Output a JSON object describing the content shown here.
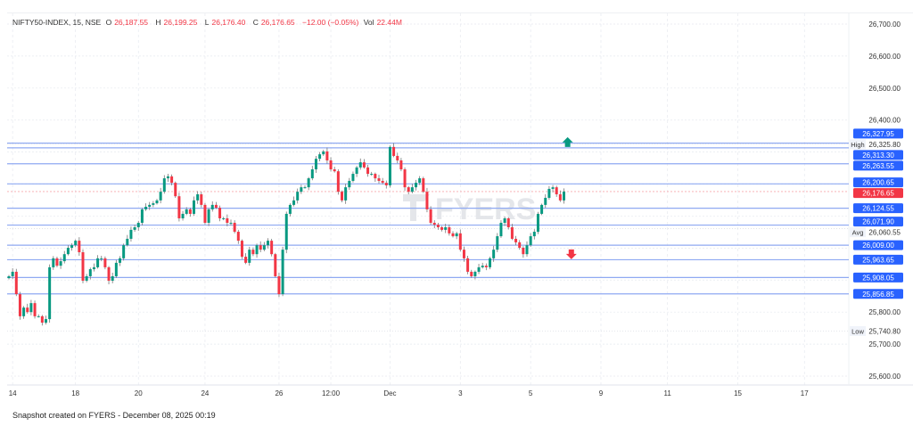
{
  "header": {
    "symbol": "NIFTY50-INDEX, 15, NSE",
    "open_label": "O",
    "open": "26,187.55",
    "high_label": "H",
    "high": "26,199.25",
    "low_label": "L",
    "low": "26,176.40",
    "close_label": "C",
    "close": "26,176.65",
    "change": "−12.00 (−0.05%)",
    "vol_label": "Vol",
    "vol": "22.44M"
  },
  "watermark": "FYERS",
  "footer": "Snapshot created on FYERS - December 08, 2025 00:19",
  "colors": {
    "up": "#089981",
    "down": "#f23645",
    "level_line": "#8fa9f2",
    "level_badge": "#2962ff",
    "last_price": "#f23645",
    "grid": "#e6e9ef"
  },
  "chart_data": {
    "type": "candlestick",
    "ylim": [
      25560,
      26730
    ],
    "y_ticks": [
      26700,
      26600,
      26500,
      26400,
      26300,
      26200,
      26100,
      26000,
      25900,
      25800,
      25700,
      25600
    ],
    "y_tick_labels": [
      "26,700.00",
      "26,600.00",
      "26,500.00",
      "26,400.00",
      "26,300.00",
      "26,200.00",
      "26,100.00",
      "26,000.00",
      "25,900.00",
      "25,800.00",
      "25,700.00",
      "25,600.00"
    ],
    "x_ticks": [
      {
        "label": "14",
        "bar": 1
      },
      {
        "label": "18",
        "bar": 18
      },
      {
        "label": "20",
        "bar": 35
      },
      {
        "label": "24",
        "bar": 53
      },
      {
        "label": "26",
        "bar": 73
      },
      {
        "label": "12:00",
        "bar": 87
      },
      {
        "label": "Dec",
        "bar": 103
      },
      {
        "label": "3",
        "bar": 122
      },
      {
        "label": "5",
        "bar": 141
      },
      {
        "label": "9",
        "bar": 160
      },
      {
        "label": "11",
        "bar": 178
      },
      {
        "label": "15",
        "bar": 197
      },
      {
        "label": "17",
        "bar": 215
      }
    ],
    "closes": [
      25912,
      25926,
      25856,
      25787,
      25814,
      25800,
      25828,
      25787,
      25787,
      25767,
      25778,
      25940,
      25968,
      25945,
      25959,
      25981,
      26001,
      26009,
      26023,
      25987,
      25898,
      25912,
      25934,
      25940,
      25968,
      25968,
      25940,
      25898,
      25912,
      25954,
      25968,
      26009,
      26029,
      26057,
      26065,
      26079,
      26121,
      26129,
      26135,
      26140,
      26149,
      26176,
      26218,
      26224,
      26204,
      26162,
      26093,
      26107,
      26121,
      26107,
      26149,
      26168,
      26135,
      26079,
      26121,
      26135,
      26126,
      26093,
      26093,
      26079,
      26079,
      26051,
      26023,
      25973,
      25954,
      25995,
      25981,
      26009,
      25995,
      26009,
      26023,
      25981,
      25912,
      25856,
      25995,
      26107,
      26135,
      26149,
      26176,
      26190,
      26190,
      26218,
      26246,
      26279,
      26293,
      26302,
      26274,
      26246,
      26240,
      26176,
      26149,
      26190,
      26210,
      26232,
      26252,
      26268,
      26252,
      26232,
      26232,
      26218,
      26210,
      26204,
      26196,
      26316,
      26288,
      26274,
      26246,
      26190,
      26176,
      26190,
      26204,
      26218,
      26176,
      26121,
      26079,
      26073,
      26065,
      26057,
      26065,
      26046,
      26037,
      26046,
      25995,
      25968,
      25926,
      25912,
      25926,
      25940,
      25945,
      25940,
      25968,
      25995,
      26037,
      26079,
      26093,
      26065,
      26029,
      26018,
      26001,
      25981,
      26009,
      26037,
      26051,
      26107,
      26135,
      26157,
      26185,
      26190,
      26168,
      26149,
      26176.65
    ],
    "levels": [
      {
        "value": 26327.95,
        "label": "26,327.95"
      },
      {
        "value": 26313.3,
        "label": "26,313.30"
      },
      {
        "value": 26263.55,
        "label": "26,263.55"
      },
      {
        "value": 26200.65,
        "label": "26,200.65"
      },
      {
        "value": 26124.55,
        "label": "26,124.55"
      },
      {
        "value": 26071.9,
        "label": "26,071.90"
      },
      {
        "value": 26009.0,
        "label": "26,009.00"
      },
      {
        "value": 25963.65,
        "label": "25,963.65"
      },
      {
        "value": 25908.05,
        "label": "25,908.05"
      },
      {
        "value": 25856.85,
        "label": "25,856.85"
      }
    ],
    "last_price": {
      "value": 26176.65,
      "label": "26,176.65"
    },
    "stats": [
      {
        "name": "High",
        "value": 26325.8,
        "label": "26,325.80"
      },
      {
        "name": "Avg",
        "value": 26060.55,
        "label": "26,060.55"
      },
      {
        "name": "Low",
        "value": 25740.8,
        "label": "25,740.80"
      }
    ],
    "markers": [
      {
        "type": "arrow-up",
        "bar": 151,
        "value": 26330
      },
      {
        "type": "arrow-down",
        "bar": 152,
        "value": 25982
      }
    ]
  }
}
